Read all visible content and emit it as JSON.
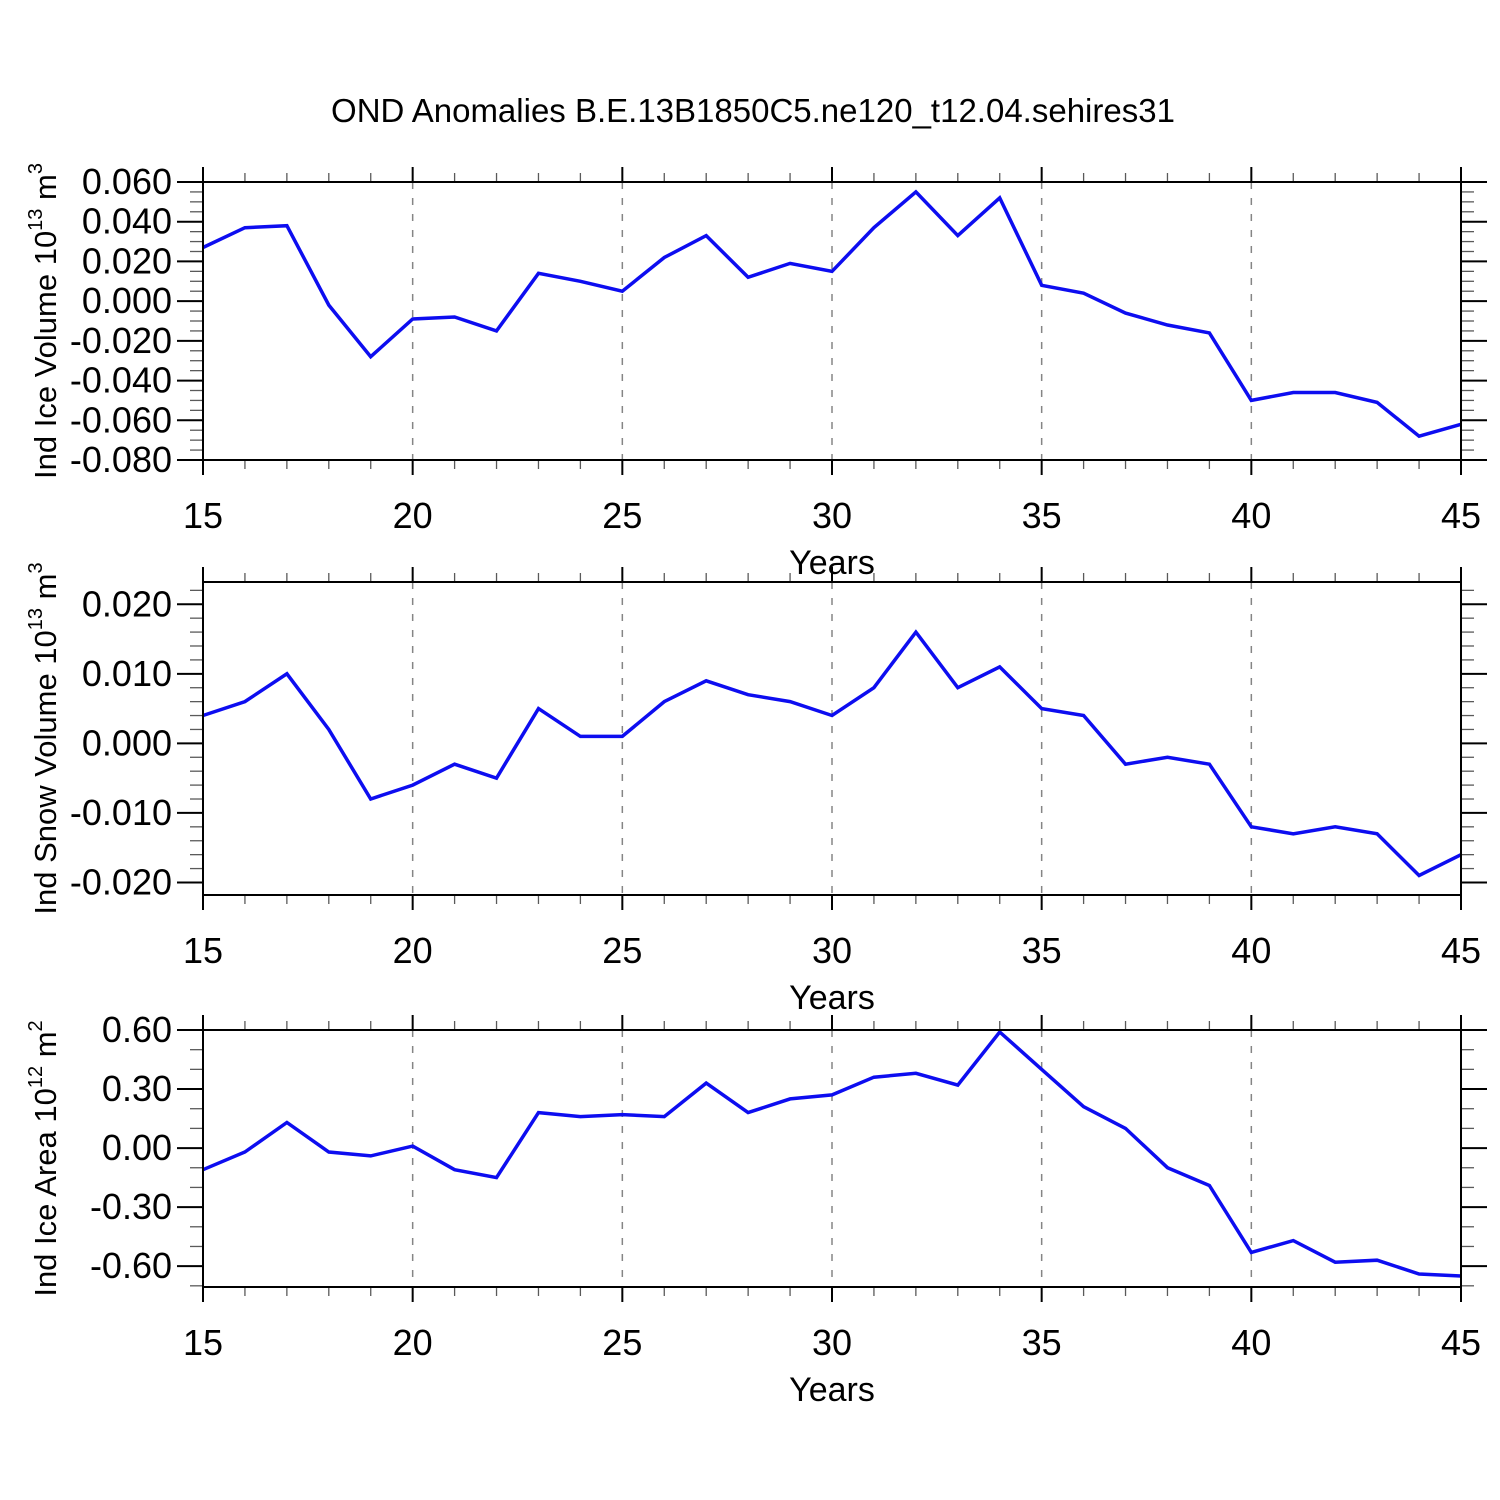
{
  "title": "OND Anomalies B.E.13B1850C5.ne120_t12.04.sehires31",
  "colors": {
    "line": "#0d0df0",
    "grid": "#858585",
    "axis": "#000000",
    "minor_tick": "#5a5a5a"
  },
  "chart_data": [
    {
      "type": "line",
      "name": "ind-ice-volume",
      "ylabel": "Ind Ice Volume 10^13 m^3",
      "ylabel_parts": [
        [
          "t",
          "Ind Ice Volume 10"
        ],
        [
          "s",
          "13"
        ],
        [
          "t",
          " m"
        ],
        [
          "s",
          "3"
        ]
      ],
      "ylim": [
        -0.08,
        0.06
      ],
      "yticks": [
        {
          "v": 0.06,
          "label": "0.060"
        },
        {
          "v": 0.04,
          "label": "0.040"
        },
        {
          "v": 0.02,
          "label": "0.020"
        },
        {
          "v": 0.0,
          "label": "0.000"
        },
        {
          "v": -0.02,
          "label": "-0.020"
        },
        {
          "v": -0.04,
          "label": "-0.040"
        },
        {
          "v": -0.06,
          "label": "-0.060"
        },
        {
          "v": -0.08,
          "label": "-0.080"
        }
      ],
      "yminor_step": 0.005,
      "xlabel": "Years",
      "xlim": [
        15,
        45
      ],
      "xticks": [
        {
          "v": 15,
          "label": "15"
        },
        {
          "v": 20,
          "label": "20"
        },
        {
          "v": 25,
          "label": "25"
        },
        {
          "v": 30,
          "label": "30"
        },
        {
          "v": 35,
          "label": "35"
        },
        {
          "v": 40,
          "label": "40"
        },
        {
          "v": 45,
          "label": "45"
        }
      ],
      "xminor_step": 1,
      "grid_years": [
        20,
        25,
        30,
        35,
        40
      ],
      "x": [
        15,
        16,
        17,
        18,
        19,
        20,
        21,
        22,
        23,
        24,
        25,
        26,
        27,
        28,
        29,
        30,
        31,
        32,
        33,
        34,
        35,
        36,
        37,
        38,
        39,
        40,
        41,
        42,
        43,
        44,
        45
      ],
      "y": [
        0.027,
        0.037,
        0.038,
        -0.002,
        -0.028,
        -0.009,
        -0.008,
        -0.015,
        0.014,
        0.01,
        0.005,
        0.022,
        0.033,
        0.012,
        0.019,
        0.015,
        0.037,
        0.055,
        0.033,
        0.052,
        0.008,
        0.004,
        -0.006,
        -0.012,
        -0.016,
        -0.05,
        -0.046,
        -0.046,
        -0.051,
        -0.068,
        -0.062
      ]
    },
    {
      "type": "line",
      "name": "ind-snow-volume",
      "ylabel": "Ind Snow Volume 10^13 m^3",
      "ylabel_parts": [
        [
          "t",
          "Ind Snow Volume 10"
        ],
        [
          "s",
          "13"
        ],
        [
          "t",
          " m"
        ],
        [
          "s",
          "3"
        ]
      ],
      "ylim": [
        -0.02,
        0.02
      ],
      "yticks": [
        {
          "v": 0.02,
          "label": "0.020"
        },
        {
          "v": 0.01,
          "label": "0.010"
        },
        {
          "v": 0.0,
          "label": "0.000"
        },
        {
          "v": -0.01,
          "label": "-0.010"
        },
        {
          "v": -0.02,
          "label": "-0.020"
        }
      ],
      "yminor_step": 0.002,
      "xlabel": "Years",
      "xlim": [
        15,
        45
      ],
      "xticks": [
        {
          "v": 15,
          "label": "15"
        },
        {
          "v": 20,
          "label": "20"
        },
        {
          "v": 25,
          "label": "25"
        },
        {
          "v": 30,
          "label": "30"
        },
        {
          "v": 35,
          "label": "35"
        },
        {
          "v": 40,
          "label": "40"
        },
        {
          "v": 45,
          "label": "45"
        }
      ],
      "xminor_step": 1,
      "grid_years": [
        20,
        25,
        30,
        35,
        40
      ],
      "x": [
        15,
        16,
        17,
        18,
        19,
        20,
        21,
        22,
        23,
        24,
        25,
        26,
        27,
        28,
        29,
        30,
        31,
        32,
        33,
        34,
        35,
        36,
        37,
        38,
        39,
        40,
        41,
        42,
        43,
        44,
        45
      ],
      "y": [
        0.004,
        0.006,
        0.01,
        0.002,
        -0.008,
        -0.006,
        -0.003,
        -0.005,
        0.005,
        0.001,
        0.001,
        0.006,
        0.009,
        0.007,
        0.006,
        0.004,
        0.008,
        0.016,
        0.008,
        0.011,
        0.005,
        0.004,
        -0.003,
        -0.002,
        -0.003,
        -0.012,
        -0.013,
        -0.012,
        -0.013,
        -0.019,
        -0.016
      ]
    },
    {
      "type": "line",
      "name": "ind-ice-area",
      "ylabel": "Ind Ice Area 10^12 m^2",
      "ylabel_parts": [
        [
          "t",
          "Ind Ice Area 10"
        ],
        [
          "s",
          "12"
        ],
        [
          "t",
          " m"
        ],
        [
          "s",
          "2"
        ]
      ],
      "ylim": [
        -0.6,
        0.6
      ],
      "yticks": [
        {
          "v": 0.6,
          "label": "0.60"
        },
        {
          "v": 0.3,
          "label": "0.30"
        },
        {
          "v": 0.0,
          "label": "0.00"
        },
        {
          "v": -0.3,
          "label": "-0.30"
        },
        {
          "v": -0.6,
          "label": "-0.60"
        }
      ],
      "yminor_step": 0.1,
      "xlabel": "Years",
      "xlim": [
        15,
        45
      ],
      "xticks": [
        {
          "v": 15,
          "label": "15"
        },
        {
          "v": 20,
          "label": "20"
        },
        {
          "v": 25,
          "label": "25"
        },
        {
          "v": 30,
          "label": "30"
        },
        {
          "v": 35,
          "label": "35"
        },
        {
          "v": 40,
          "label": "40"
        },
        {
          "v": 45,
          "label": "45"
        }
      ],
      "xminor_step": 1,
      "grid_years": [
        20,
        25,
        30,
        35,
        40
      ],
      "x": [
        15,
        16,
        17,
        18,
        19,
        20,
        21,
        22,
        23,
        24,
        25,
        26,
        27,
        28,
        29,
        30,
        31,
        32,
        33,
        34,
        35,
        36,
        37,
        38,
        39,
        40,
        41,
        42,
        43,
        44,
        45
      ],
      "y": [
        -0.11,
        -0.02,
        0.13,
        -0.02,
        -0.04,
        0.01,
        -0.11,
        -0.15,
        0.18,
        0.16,
        0.17,
        0.16,
        0.33,
        0.18,
        0.25,
        0.27,
        0.36,
        0.38,
        0.32,
        0.59,
        0.4,
        0.21,
        0.1,
        -0.1,
        -0.19,
        -0.53,
        -0.47,
        -0.58,
        -0.57,
        -0.64,
        -0.65
      ]
    }
  ]
}
